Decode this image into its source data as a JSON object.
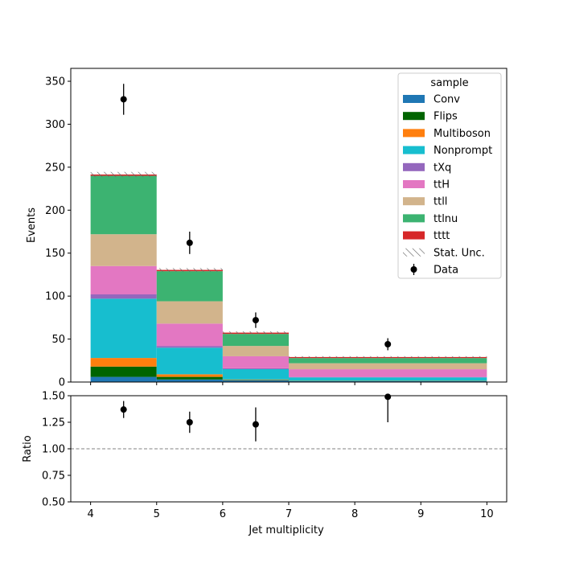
{
  "chart_data": [
    {
      "type": "bar",
      "subtype": "stacked-histogram",
      "ylabel": "Events",
      "ylim": [
        0,
        365
      ],
      "yticks": [
        0,
        50,
        100,
        150,
        200,
        250,
        300,
        350
      ],
      "bin_edges": [
        4,
        5,
        6,
        7,
        10
      ],
      "legend": {
        "title": "sample",
        "placement": "top-right"
      },
      "series": [
        {
          "name": "Conv",
          "color": "#1f77b4",
          "values": [
            6,
            3,
            2,
            1
          ]
        },
        {
          "name": "Flips",
          "color": "#006400",
          "values": [
            12,
            3,
            0.5,
            0.2
          ]
        },
        {
          "name": "Multiboson",
          "color": "#ff7f0e",
          "values": [
            10,
            3,
            0.5,
            0.2
          ]
        },
        {
          "name": "Nonprompt",
          "color": "#17becf",
          "values": [
            69,
            31,
            12,
            4
          ]
        },
        {
          "name": "tXq",
          "color": "#9467bd",
          "values": [
            5,
            2,
            1,
            0.5
          ]
        },
        {
          "name": "ttH",
          "color": "#e377c2",
          "values": [
            33,
            26,
            14,
            9
          ]
        },
        {
          "name": "ttll",
          "color": "#d2b48c",
          "values": [
            37,
            26,
            12,
            7
          ]
        },
        {
          "name": "ttlnu",
          "color": "#3cb371",
          "values": [
            68,
            35,
            14,
            6
          ]
        },
        {
          "name": "tttt",
          "color": "#d62728",
          "values": [
            1.5,
            1.5,
            1.5,
            1.2
          ]
        }
      ],
      "stat_unc": {
        "name": "Stat. Unc.",
        "half_width": [
          3,
          2,
          1.5,
          1
        ]
      },
      "data": {
        "name": "Data",
        "color": "#000000",
        "x": [
          4.5,
          5.5,
          6.5,
          8.5
        ],
        "y": [
          329,
          162,
          72,
          44
        ],
        "err": [
          18,
          13,
          9,
          7
        ]
      }
    },
    {
      "type": "scatter",
      "subtype": "ratio",
      "xlabel": "Jet multiplicity",
      "ylabel": "Ratio",
      "xlim": [
        3.7,
        10.3
      ],
      "xticks": [
        4,
        5,
        6,
        7,
        8,
        9,
        10
      ],
      "ylim": [
        0.5,
        1.5
      ],
      "yticks": [
        "0.50",
        "0.75",
        "1.00",
        "1.25",
        "1.50"
      ],
      "reference_line": {
        "y": 1.0,
        "color": "#808080",
        "style": "dashed"
      },
      "points": {
        "x": [
          4.5,
          5.5,
          6.5,
          8.5
        ],
        "y": [
          1.37,
          1.25,
          1.23,
          1.49
        ],
        "err": [
          0.08,
          0.1,
          0.16,
          0.24
        ]
      }
    }
  ]
}
